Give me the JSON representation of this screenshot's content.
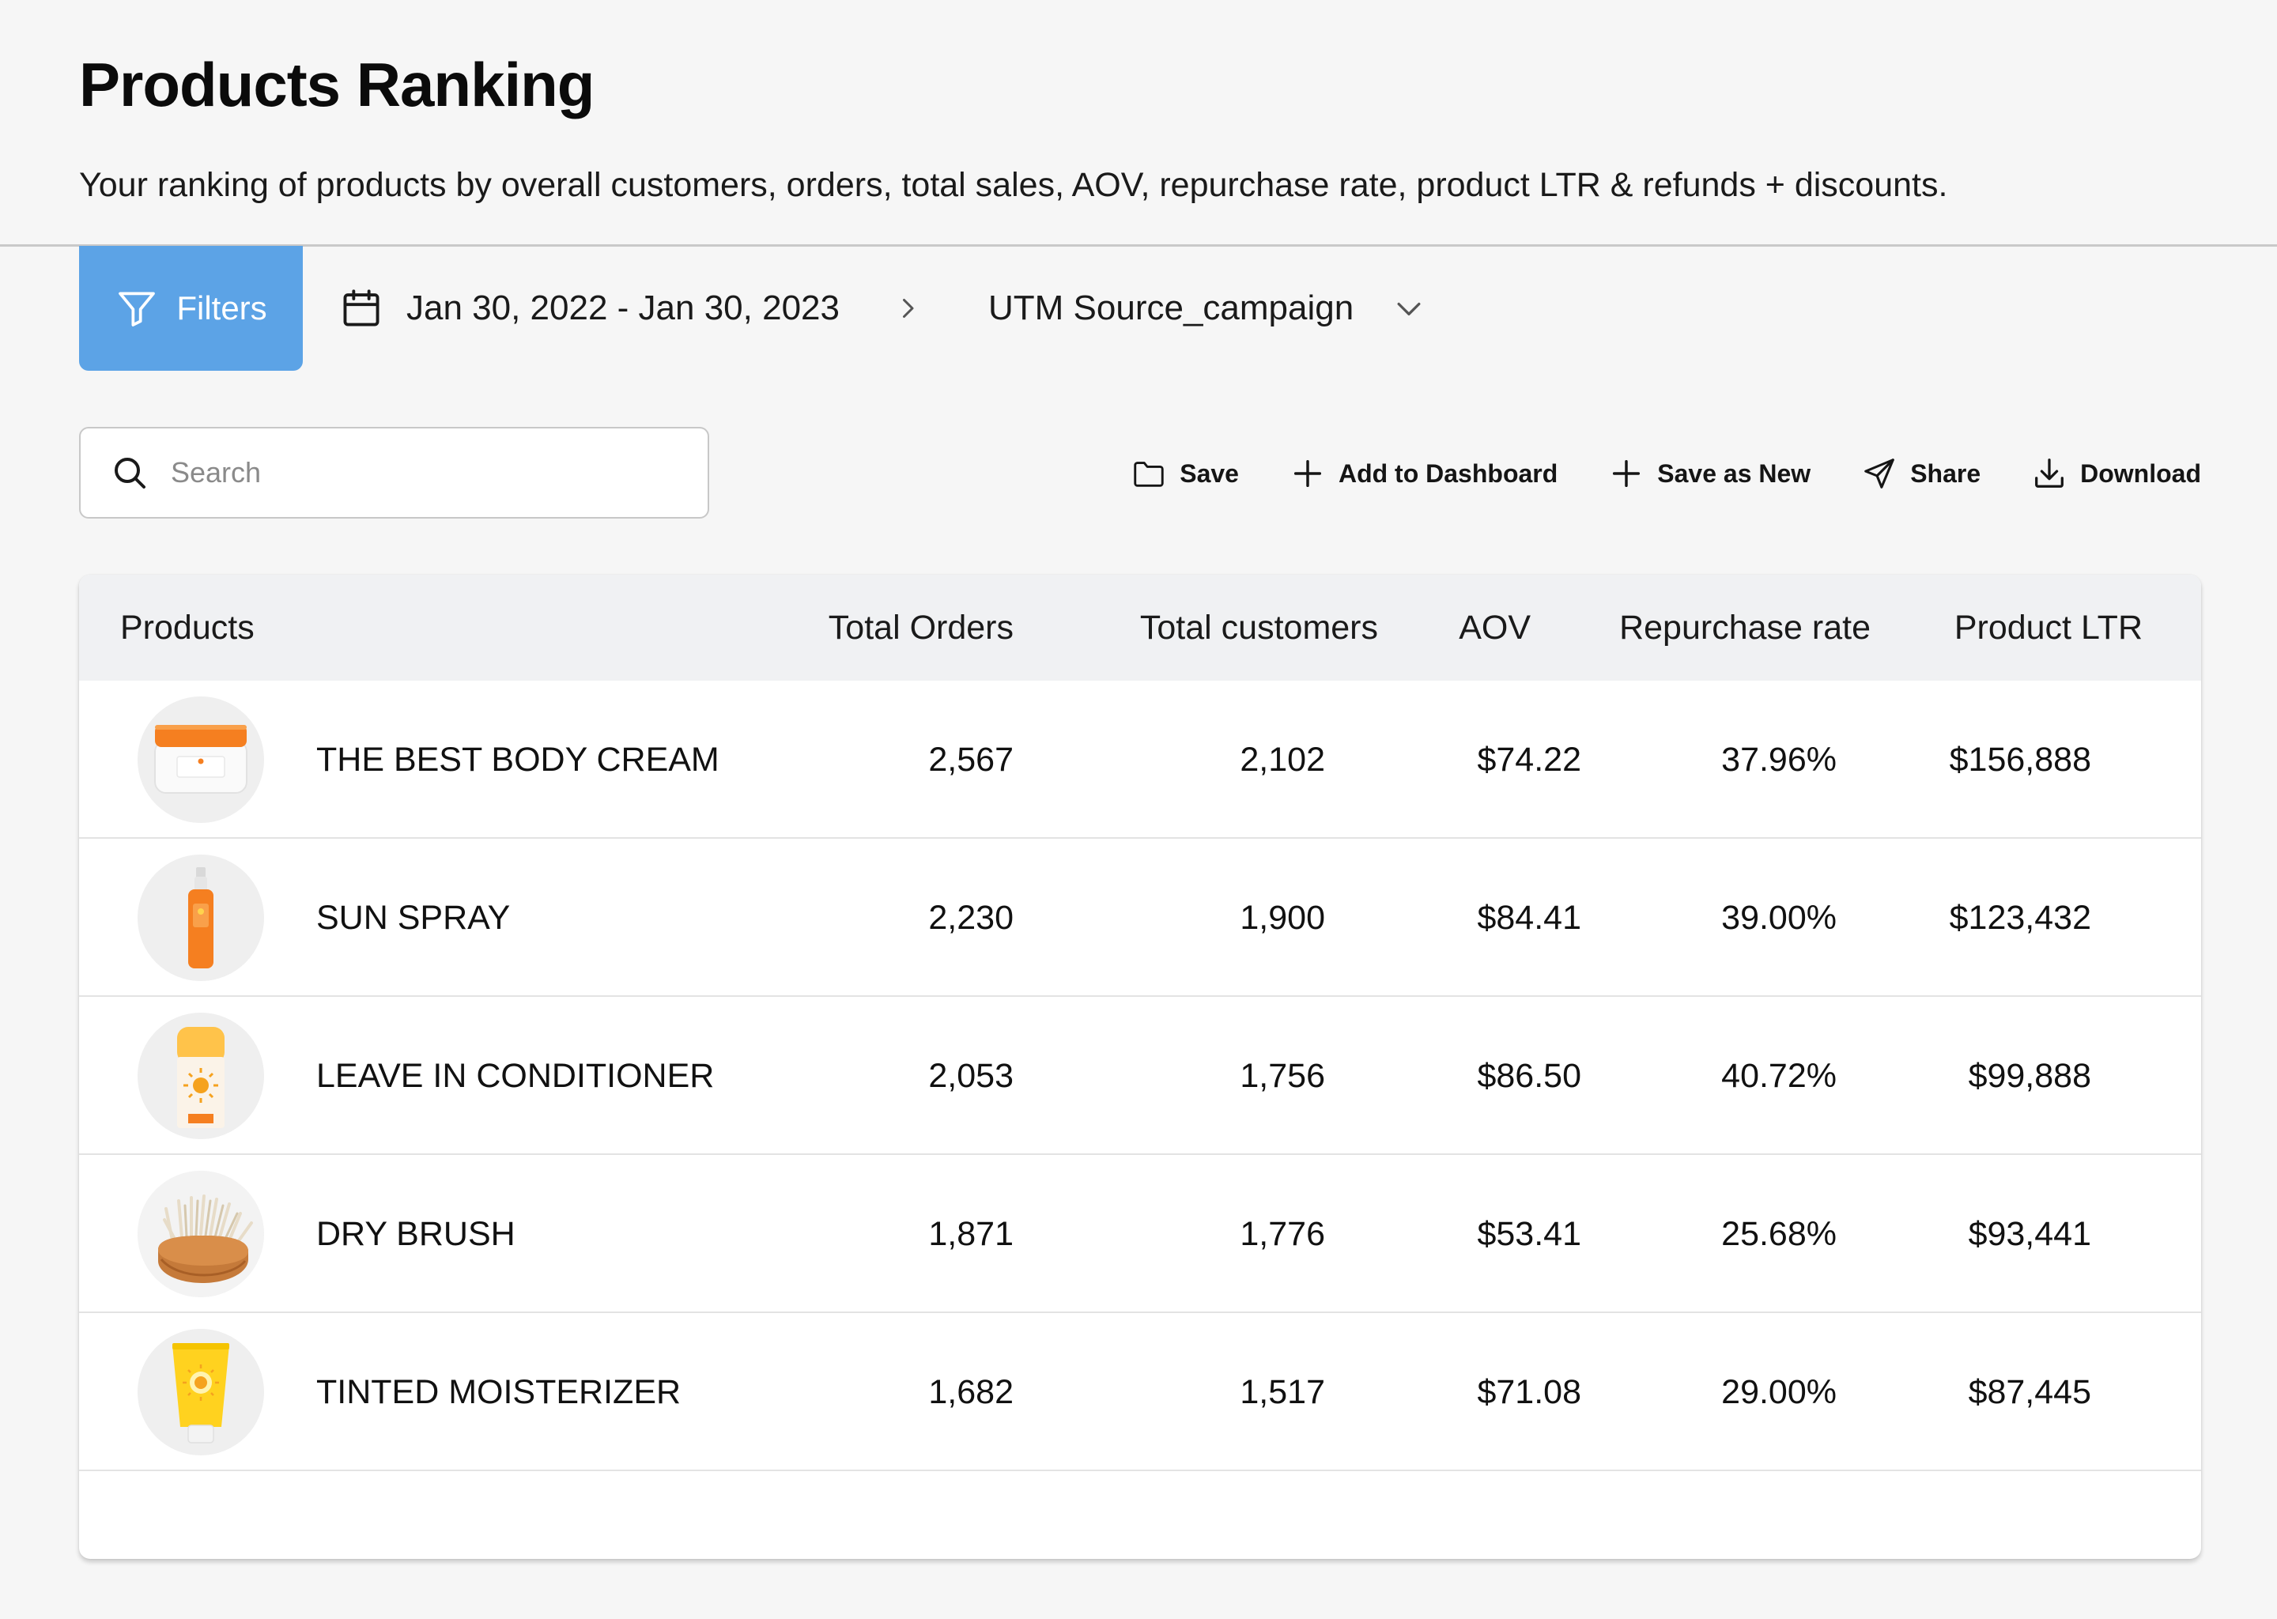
{
  "header": {
    "title": "Products Ranking",
    "subtitle": "Your ranking of products by overall customers, orders, total sales, AOV, repurchase rate, product LTR & refunds + discounts."
  },
  "filter_bar": {
    "filters_label": "Filters",
    "date_range": "Jan 30, 2022 - Jan 30, 2023",
    "utm_selected": "UTM Source_campaign"
  },
  "search": {
    "placeholder": "Search",
    "value": ""
  },
  "toolbar": {
    "save": "Save",
    "add_to_dashboard": "Add to Dashboard",
    "save_as_new": "Save as New",
    "share": "Share",
    "download": "Download"
  },
  "table": {
    "columns": [
      "Products",
      "Total Orders",
      "Total customers",
      "AOV",
      "Repurchase rate",
      "Product LTR"
    ],
    "rows": [
      {
        "name": "THE BEST BODY CREAM",
        "orders": "2,567",
        "customers": "2,102",
        "aov": "$74.22",
        "repurchase": "37.96%",
        "ltr": "$156,888",
        "icon": "body-cream-jar-icon"
      },
      {
        "name": "SUN SPRAY",
        "orders": "2,230",
        "customers": "1,900",
        "aov": "$84.41",
        "repurchase": "39.00%",
        "ltr": "$123,432",
        "icon": "sun-spray-bottle-icon"
      },
      {
        "name": "LEAVE IN CONDITIONER",
        "orders": "2,053",
        "customers": "1,756",
        "aov": "$86.50",
        "repurchase": "40.72%",
        "ltr": "$99,888",
        "icon": "conditioner-stick-icon"
      },
      {
        "name": "DRY BRUSH",
        "orders": "1,871",
        "customers": "1,776",
        "aov": "$53.41",
        "repurchase": "25.68%",
        "ltr": "$93,441",
        "icon": "dry-brush-icon"
      },
      {
        "name": "TINTED MOISTERIZER",
        "orders": "1,682",
        "customers": "1,517",
        "aov": "$71.08",
        "repurchase": "29.00%",
        "ltr": "$87,445",
        "icon": "moisturizer-tube-icon"
      }
    ]
  },
  "colors": {
    "accent": "#5ca3e6",
    "page_bg": "#f6f6f6",
    "table_header_bg": "#f0f1f3"
  }
}
